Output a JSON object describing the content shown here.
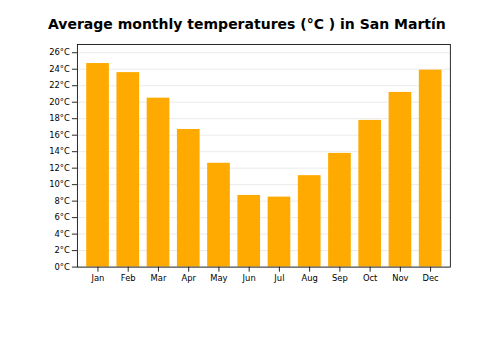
{
  "chart_data": {
    "type": "bar",
    "title": "Average monthly temperatures (°C ) in San Martín",
    "categories": [
      "Jan",
      "Feb",
      "Mar",
      "Apr",
      "May",
      "Jun",
      "Jul",
      "Aug",
      "Sep",
      "Oct",
      "Nov",
      "Dec"
    ],
    "values": [
      24.7,
      23.6,
      20.5,
      16.7,
      12.6,
      8.7,
      8.5,
      11.1,
      13.8,
      17.8,
      21.2,
      23.9
    ],
    "color": "#FFAA00",
    "ylim": [
      0,
      27
    ],
    "yticks": [
      {
        "value": 0,
        "label": "0°C"
      },
      {
        "value": 2,
        "label": "2°C"
      },
      {
        "value": 4,
        "label": "4°C"
      },
      {
        "value": 6,
        "label": "6°C"
      },
      {
        "value": 8,
        "label": "8°C"
      },
      {
        "value": 10,
        "label": "10°C"
      },
      {
        "value": 12,
        "label": "12°C"
      },
      {
        "value": 14,
        "label": "14°C"
      },
      {
        "value": 16,
        "label": "16°C"
      },
      {
        "value": 18,
        "label": "18°C"
      },
      {
        "value": 20,
        "label": "20°C"
      },
      {
        "value": 22,
        "label": "22°C"
      },
      {
        "value": 24,
        "label": "24°C"
      },
      {
        "value": 26,
        "label": "26°C"
      }
    ],
    "grid": true
  }
}
